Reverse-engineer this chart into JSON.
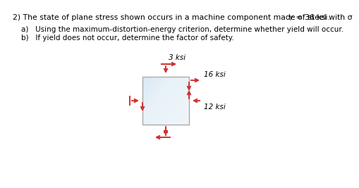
{
  "title": "2) The state of plane stress shown occurs in a machine component made of steel with σʸ = 36 ksi.",
  "title_main": "2) The state of plane stress shown occurs in a machine component made of steel with σ",
  "title_sub": "Y",
  "title_end": " = 36 ksi.",
  "sub_a": "a)   Using the maximum-distortion-energy criterion, determine whether yield will occur.",
  "sub_b": "b)   If yield does not occur, determine the factor of safety.",
  "stress_top": "3 ksi",
  "stress_16": "16 ksi",
  "stress_12": "12 ksi",
  "arrow_color": "#d13030",
  "box_edge_color": "#aaaaaa",
  "bg_color": "#ffffff",
  "text_color": "#000000",
  "font_size_title": 7.8,
  "font_size_sub": 7.5,
  "font_size_stress": 7.5
}
